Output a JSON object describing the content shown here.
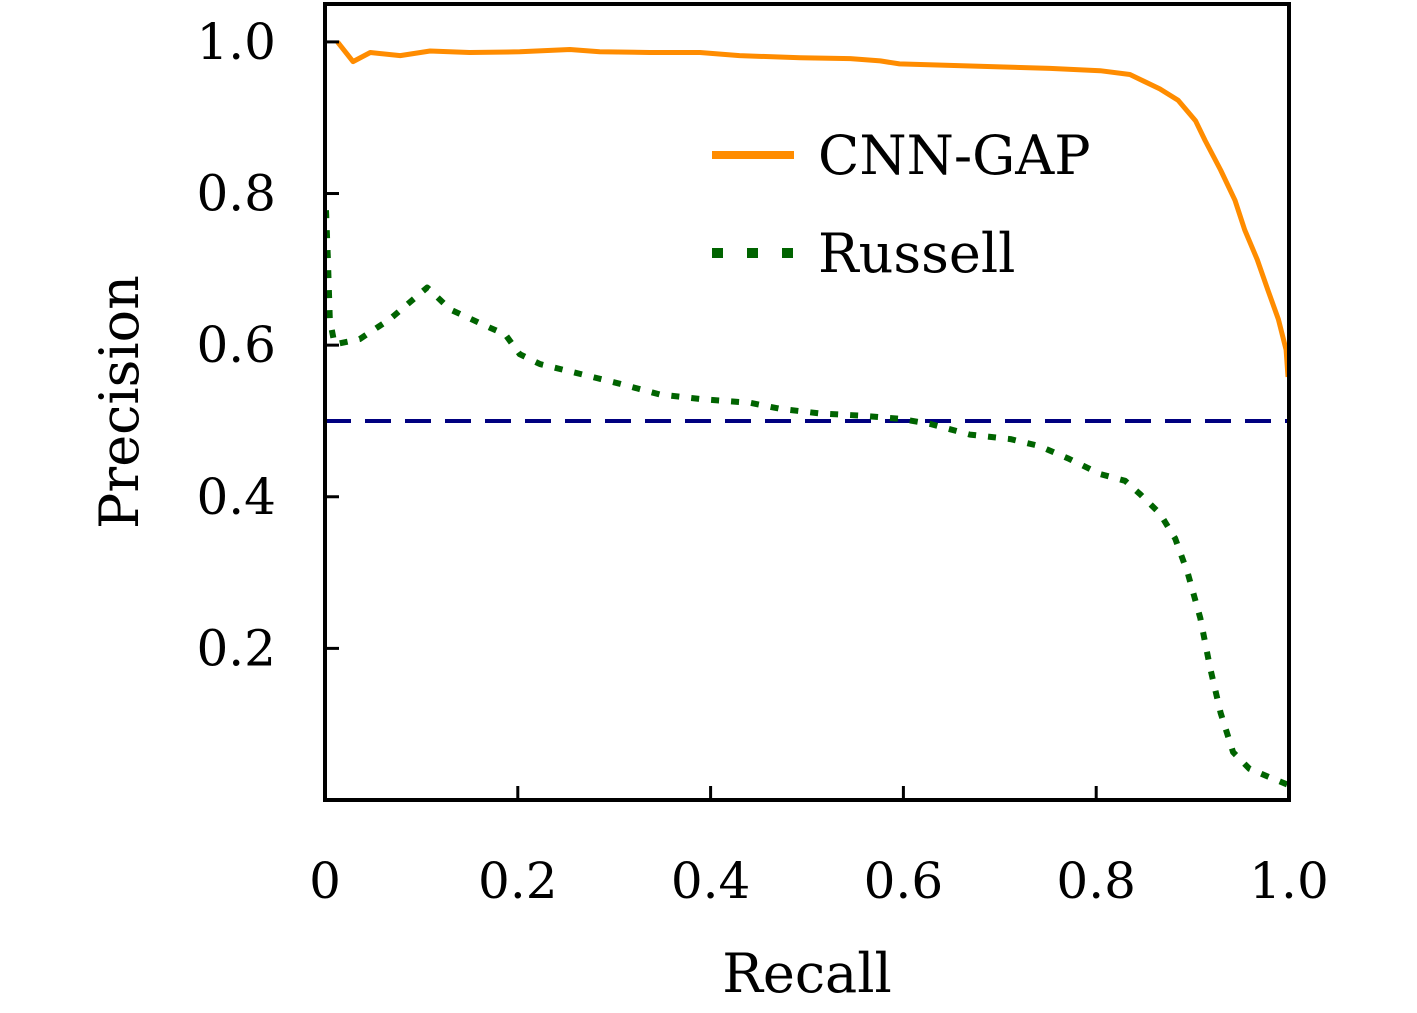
{
  "chart_data": {
    "type": "line",
    "title": "",
    "xlabel": "Recall",
    "ylabel": "Precision",
    "xlim": [
      0,
      1.0
    ],
    "ylim": [
      0.0,
      1.05
    ],
    "grid": false,
    "legend_position": "upper-right (inside, centered horizontally near top)",
    "xticks": [
      {
        "value": 0,
        "label": "0"
      },
      {
        "value": 0.2,
        "label": "0.2"
      },
      {
        "value": 0.4,
        "label": "0.4"
      },
      {
        "value": 0.6,
        "label": "0.6"
      },
      {
        "value": 0.8,
        "label": "0.8"
      },
      {
        "value": 1.0,
        "label": "1.0"
      }
    ],
    "yticks": [
      {
        "value": 0.2,
        "label": "0.2"
      },
      {
        "value": 0.4,
        "label": "0.4"
      },
      {
        "value": 0.6,
        "label": "0.6"
      },
      {
        "value": 0.8,
        "label": "0.8"
      },
      {
        "value": 1.0,
        "label": "1.0"
      }
    ],
    "series": [
      {
        "name": "CNN-GAP",
        "color": "#ff8c00",
        "style": "solid",
        "x": [
          0.013,
          0.029,
          0.047,
          0.078,
          0.109,
          0.15,
          0.202,
          0.254,
          0.285,
          0.337,
          0.389,
          0.43,
          0.493,
          0.545,
          0.576,
          0.596,
          0.648,
          0.7,
          0.752,
          0.804,
          0.835,
          0.866,
          0.885,
          0.903,
          0.913,
          0.929,
          0.944,
          0.954,
          0.967,
          0.978,
          0.989,
          0.997,
          0.999
        ],
        "y": [
          1.0,
          0.974,
          0.986,
          0.982,
          0.988,
          0.986,
          0.987,
          0.99,
          0.987,
          0.986,
          0.986,
          0.982,
          0.979,
          0.978,
          0.975,
          0.971,
          0.969,
          0.967,
          0.965,
          0.962,
          0.957,
          0.938,
          0.923,
          0.896,
          0.87,
          0.831,
          0.791,
          0.752,
          0.713,
          0.673,
          0.634,
          0.594,
          0.558
        ]
      },
      {
        "name": "Russell",
        "color": "#006400",
        "style": "dotted",
        "x": [
          0.001,
          0.003,
          0.005,
          0.01,
          0.036,
          0.067,
          0.106,
          0.13,
          0.171,
          0.187,
          0.202,
          0.223,
          0.265,
          0.306,
          0.347,
          0.389,
          0.441,
          0.472,
          0.513,
          0.555,
          0.596,
          0.628,
          0.669,
          0.711,
          0.741,
          0.772,
          0.804,
          0.83,
          0.845,
          0.866,
          0.882,
          0.895,
          0.908,
          0.918,
          0.929,
          0.942,
          0.959,
          0.98,
          0.999
        ],
        "y": [
          0.778,
          0.713,
          0.634,
          0.601,
          0.608,
          0.634,
          0.676,
          0.647,
          0.623,
          0.614,
          0.588,
          0.575,
          0.562,
          0.549,
          0.535,
          0.529,
          0.524,
          0.516,
          0.51,
          0.507,
          0.503,
          0.496,
          0.482,
          0.476,
          0.467,
          0.45,
          0.43,
          0.421,
          0.404,
          0.378,
          0.345,
          0.299,
          0.24,
          0.175,
          0.115,
          0.063,
          0.041,
          0.03,
          0.02
        ]
      }
    ],
    "reference_lines": [
      {
        "name": "baseline",
        "orientation": "horizontal",
        "y": 0.5,
        "color": "#000080",
        "style": "dashed",
        "in_legend": false
      }
    ],
    "legend": [
      {
        "label": "CNN-GAP",
        "color": "#ff8c00",
        "style": "solid"
      },
      {
        "label": "Russell",
        "color": "#006400",
        "style": "dotted"
      }
    ]
  }
}
